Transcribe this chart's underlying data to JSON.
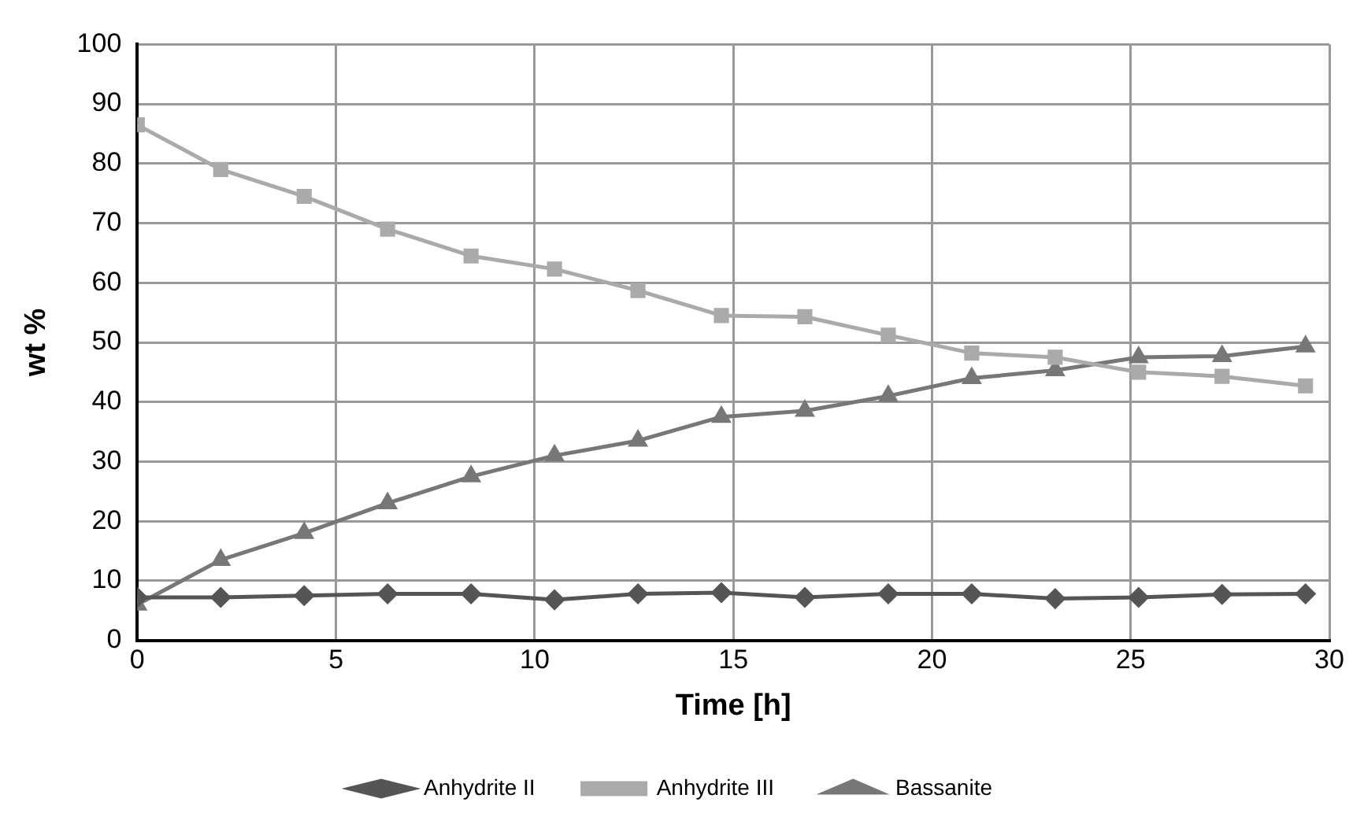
{
  "chart_data": {
    "type": "line",
    "xlabel": "Time [h]",
    "ylabel": "wt %",
    "x": [
      0,
      2.1,
      4.2,
      6.3,
      8.4,
      10.5,
      12.6,
      14.7,
      16.8,
      18.9,
      21,
      23.1,
      25.2,
      27.3,
      29.4
    ],
    "series": [
      {
        "name": "Anhydrite II",
        "color": "#555555",
        "marker": "diamond",
        "values": [
          7.2,
          7.2,
          7.5,
          7.8,
          7.8,
          6.8,
          7.8,
          8,
          7.2,
          7.8,
          7.8,
          7,
          7.2,
          7.7,
          7.8
        ]
      },
      {
        "name": "Anhydrite III",
        "color": "#aaaaaa",
        "marker": "square",
        "values": [
          86.5,
          79,
          74.5,
          69,
          64.5,
          62.3,
          58.7,
          54.5,
          54.3,
          51.2,
          48.2,
          47.5,
          45,
          44.3,
          42.7
        ]
      },
      {
        "name": "Bassanite",
        "color": "#777777",
        "marker": "triangle",
        "values": [
          6,
          13.5,
          18,
          23,
          27.5,
          31,
          33.5,
          37.5,
          38.5,
          41,
          44,
          45.3,
          47.5,
          47.7,
          49.3
        ]
      }
    ],
    "xlim": [
      0,
      30
    ],
    "xticks": [
      0,
      5,
      10,
      15,
      20,
      25,
      30
    ],
    "ylim": [
      0,
      100
    ],
    "yticks": [
      0,
      10,
      20,
      30,
      40,
      50,
      60,
      70,
      80,
      90,
      100
    ],
    "grid": true,
    "legend": "bottom",
    "line_style": "solid"
  }
}
